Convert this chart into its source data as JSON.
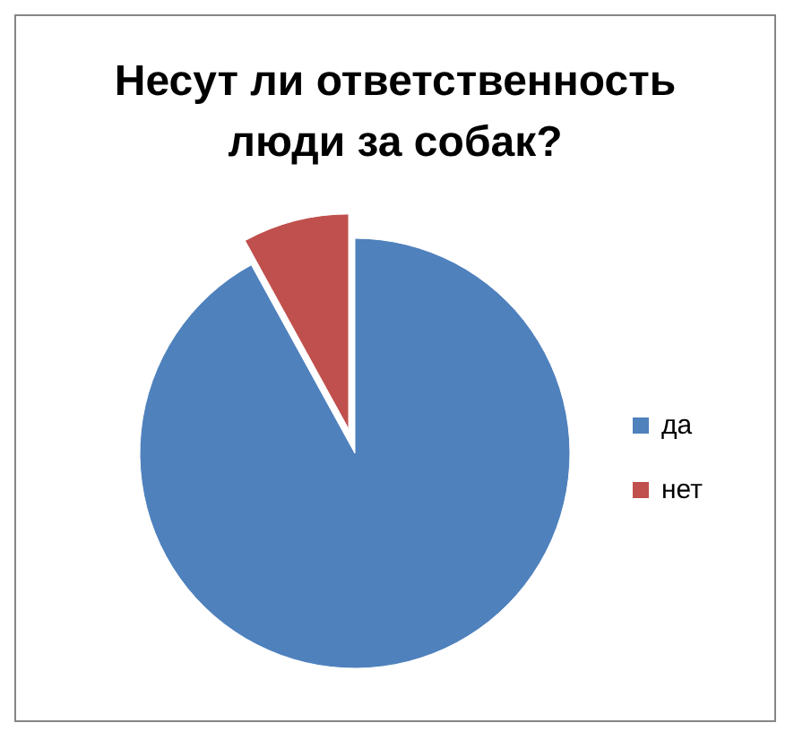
{
  "chart_data": {
    "type": "pie",
    "title": "Несут ли ответственность люди за собак?",
    "categories": [
      "да",
      "нет"
    ],
    "values": [
      92,
      8
    ],
    "colors": [
      "#4f81bd",
      "#c0504d"
    ],
    "legend": "right"
  }
}
